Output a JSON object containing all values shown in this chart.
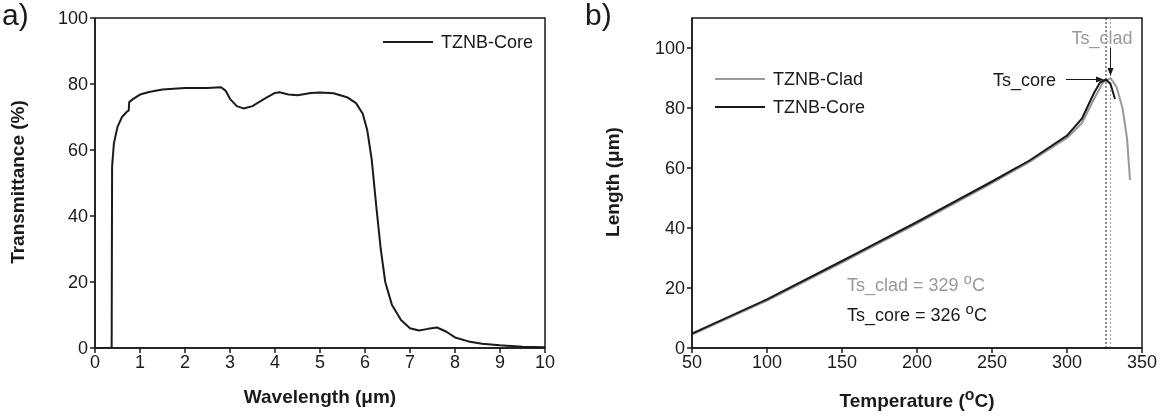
{
  "chart_data": [
    {
      "type": "line",
      "xlabel": "Wavelength (μm)",
      "ylabel": "Transmittance (%)",
      "annotations": [
        "a)"
      ],
      "xlim": [
        0,
        10
      ],
      "xticks": [
        0,
        1,
        2,
        3,
        4,
        5,
        6,
        7,
        8,
        9,
        10
      ],
      "ylim": [
        0,
        100
      ],
      "yticks": [
        0,
        20,
        40,
        60,
        80,
        100
      ],
      "grid": false,
      "legend": "top right",
      "marker": "none",
      "line_style": "solid",
      "series": [
        {
          "name": "TZNB-Core",
          "color": "#1a1a1a",
          "x": [
            0,
            0.35,
            0.37,
            0.38,
            0.42,
            0.5,
            0.6,
            0.7,
            0.75,
            0.76,
            0.85,
            1.0,
            1.2,
            1.5,
            2.0,
            2.5,
            2.8,
            2.9,
            3.0,
            3.15,
            3.3,
            3.5,
            3.8,
            4.0,
            4.1,
            4.3,
            4.5,
            4.8,
            5.0,
            5.3,
            5.6,
            5.8,
            5.95,
            6.05,
            6.15,
            6.25,
            6.35,
            6.45,
            6.6,
            6.8,
            7.0,
            7.2,
            7.4,
            7.6,
            7.8,
            8.0,
            8.3,
            8.6,
            9.0,
            9.5,
            10.0
          ],
          "values": [
            0,
            0,
            0,
            55,
            62,
            67,
            70,
            71.5,
            72,
            74.5,
            75.5,
            76.8,
            77.6,
            78.3,
            78.8,
            78.8,
            79,
            78,
            75.5,
            73.3,
            72.6,
            73.3,
            75.8,
            77.3,
            77.5,
            76.8,
            76.6,
            77.3,
            77.4,
            77.2,
            76,
            74.2,
            71,
            66,
            57,
            43,
            30,
            20,
            13,
            8.5,
            6,
            5.3,
            5.8,
            6.2,
            5,
            3.2,
            2,
            1.3,
            0.8,
            0.4,
            0.2
          ]
        }
      ]
    },
    {
      "type": "line",
      "xlabel": "Temperature ($^{o}$C)",
      "ylabel": "Length (μm)",
      "annotations": [
        "b)",
        {
          "text": "Ts_clad",
          "x": 329,
          "y": 90
        },
        {
          "text": "Ts_core",
          "x": 326,
          "y": 89.5
        },
        "Ts_clad = 329 $^{o}$C",
        "Ts_core = 326 $^{o}$C"
      ],
      "xlim": [
        50,
        350
      ],
      "xticks": [
        50,
        100,
        150,
        200,
        250,
        300,
        350
      ],
      "ylim": [
        0,
        110
      ],
      "yticks": [
        0,
        20,
        40,
        60,
        80,
        100
      ],
      "grid": false,
      "legend": "top left",
      "marker": "none",
      "line_style": "solid",
      "ref_lines": [
        {
          "axis": "x",
          "value": 326,
          "color": "#1a1a1a",
          "line_style": "dotted"
        },
        {
          "axis": "x",
          "value": 329,
          "color": "#999999",
          "line_style": "dotted"
        }
      ],
      "series": [
        {
          "name": "TZNB-Clad",
          "color": "#999999",
          "x": [
            50,
            100,
            150,
            200,
            250,
            275,
            300,
            310,
            318,
            324,
            329,
            333,
            337,
            340,
            342
          ],
          "values": [
            4.5,
            15.8,
            28.5,
            41.5,
            55,
            62,
            70,
            75,
            83,
            88.5,
            90,
            87,
            80,
            70,
            56
          ]
        },
        {
          "name": "TZNB-Core",
          "color": "#1a1a1a",
          "x": [
            50,
            100,
            150,
            200,
            250,
            275,
            300,
            310,
            318,
            322,
            326,
            329,
            332
          ],
          "values": [
            4.8,
            16.2,
            29,
            42,
            55.5,
            62.5,
            70.8,
            76.5,
            85,
            88.5,
            89.5,
            88,
            83
          ]
        }
      ]
    }
  ]
}
